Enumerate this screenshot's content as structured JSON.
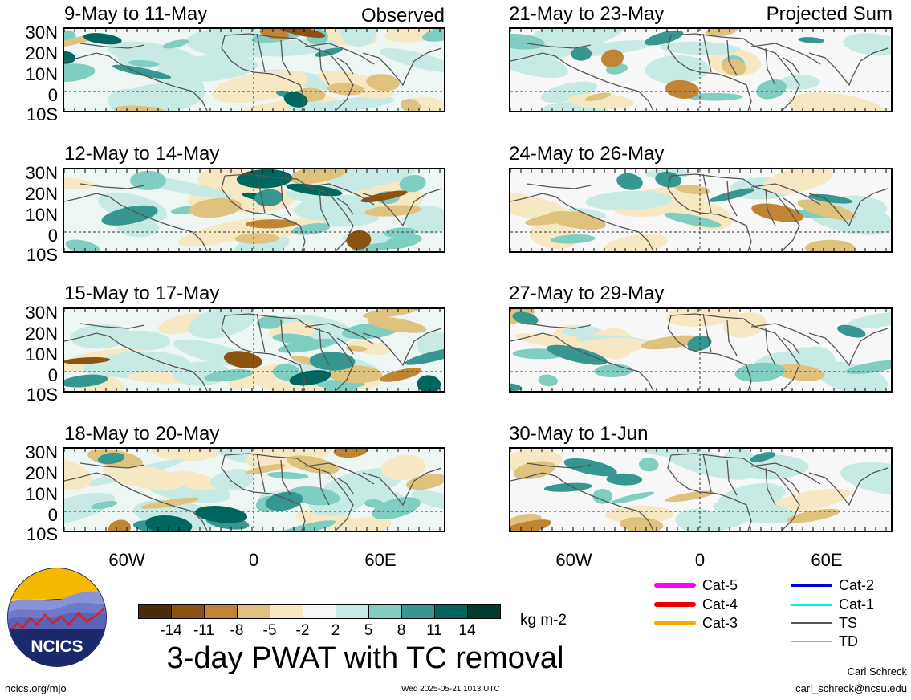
{
  "observed_label": "Observed",
  "projected_label": "Projected Sum",
  "panels": {
    "obs": [
      "9-May to 11-May",
      "12-May to 14-May",
      "15-May to 17-May",
      "18-May to 20-May"
    ],
    "proj": [
      "21-May to 23-May",
      "24-May to 26-May",
      "27-May to 29-May",
      "30-May to 1-Jun"
    ]
  },
  "lat_labels": [
    "30N",
    "20N",
    "10N",
    "0",
    "10S"
  ],
  "lon_labels": [
    "60W",
    "0",
    "60E"
  ],
  "colorbar": {
    "colors": [
      "#4a2c0a",
      "#8c520f",
      "#bf8434",
      "#dfc27d",
      "#f6e8c3",
      "#f5f5f5",
      "#c7eae5",
      "#80cdc1",
      "#35978f",
      "#01665e",
      "#003c30"
    ],
    "ticks": [
      "-14",
      "-11",
      "-8",
      "-5",
      "-2",
      "2",
      "5",
      "8",
      "11",
      "14"
    ],
    "unit": "kg m-2"
  },
  "tc_legend": [
    {
      "label": "Cat-5",
      "color": "#ff00ff"
    },
    {
      "label": "Cat-4",
      "color": "#ee0000"
    },
    {
      "label": "Cat-3",
      "color": "#ffa500"
    },
    {
      "label": "Cat-2",
      "color": "#0000dd"
    },
    {
      "label": "Cat-1",
      "color": "#00eeee"
    },
    {
      "label": "TS",
      "color": "#555555"
    },
    {
      "label": "TD",
      "color": "#aaaaaa"
    }
  ],
  "main_title": "3-day PWAT with TC removal",
  "logo_text": "NCICS",
  "footer": {
    "website": "ncics.org/mjo",
    "timestamp": "Wed 2025-05-21 1013 UTC",
    "author": "Carl Schreck",
    "email": "carl_schreck@ncsu.edu"
  }
}
